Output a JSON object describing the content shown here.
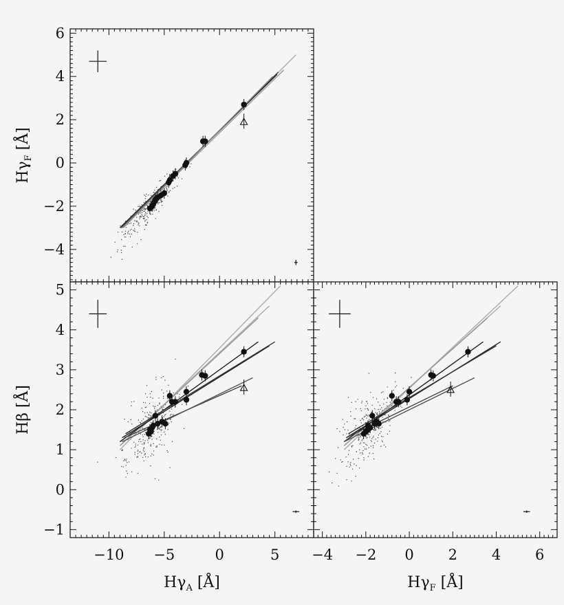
{
  "chart_data": [
    {
      "panel": "top-left",
      "type": "scatter",
      "xlabel": "",
      "ylabel": "Hγ_F [Å]",
      "ylabel_main": "Hγ",
      "ylabel_sub": "F",
      "ylabel_unit": " [Å]",
      "xlim": [
        -13.5,
        8.5
      ],
      "ylim": [
        -5.5,
        6.2
      ],
      "x_ticks": [],
      "y_ticks": [
        -4,
        -2,
        0,
        2,
        4,
        6
      ],
      "y_tick_labels": [
        "−4",
        "−2",
        "0",
        "2",
        "4",
        "6"
      ],
      "error_bar_large": {
        "x": -11.0,
        "y": 4.7,
        "dx": 0.8,
        "dy": 0.5
      },
      "error_bar_small": {
        "x": 6.9,
        "y": -4.6,
        "dx": 0.15,
        "dy": 0.12
      },
      "open_triangle": {
        "x": 2.2,
        "y": 1.9
      },
      "filled_points": [
        {
          "x": 2.2,
          "y": 2.7
        },
        {
          "x": -1.3,
          "y": 1.0
        },
        {
          "x": -1.5,
          "y": 1.0
        },
        {
          "x": -3.0,
          "y": 0.0
        },
        {
          "x": -3.1,
          "y": -0.1
        },
        {
          "x": -4.0,
          "y": -0.5
        },
        {
          "x": -4.2,
          "y": -0.6
        },
        {
          "x": -4.5,
          "y": -0.8
        },
        {
          "x": -4.6,
          "y": -0.9
        },
        {
          "x": -5.0,
          "y": -1.4
        },
        {
          "x": -5.3,
          "y": -1.5
        },
        {
          "x": -5.6,
          "y": -1.6
        },
        {
          "x": -5.8,
          "y": -1.7
        },
        {
          "x": -6.1,
          "y": -2.0
        },
        {
          "x": -6.3,
          "y": -2.1
        },
        {
          "x": -6.0,
          "y": -1.9
        },
        {
          "x": -5.9,
          "y": -1.8
        }
      ],
      "model_lines": [
        {
          "color": "#aaaaaa",
          "x": [
            -8.8,
            6.9
          ],
          "y": [
            -3.0,
            5.0
          ]
        },
        {
          "color": "#999999",
          "x": [
            -8.8,
            5.8
          ],
          "y": [
            -3.0,
            4.3
          ]
        },
        {
          "color": "#222222",
          "x": [
            -9.0,
            5.0
          ],
          "y": [
            -3.0,
            4.0
          ]
        },
        {
          "color": "#222222",
          "x": [
            -8.8,
            5.2
          ],
          "y": [
            -2.9,
            4.1
          ]
        },
        {
          "color": "#444444",
          "x": [
            -8.9,
            5.3
          ],
          "y": [
            -3.0,
            4.2
          ]
        },
        {
          "color": "#888888",
          "x": [
            -8.7,
            4.8
          ],
          "y": [
            -3.0,
            4.0
          ]
        }
      ]
    },
    {
      "panel": "bottom-left",
      "type": "scatter",
      "xlabel": "Hγ_A [Å]",
      "xlabel_main": "Hγ",
      "xlabel_sub": "A",
      "xlabel_unit": " [Å]",
      "ylabel": "Hβ [Å]",
      "ylabel_main": "Hβ",
      "ylabel_unit": " [Å]",
      "xlim": [
        -13.5,
        8.5
      ],
      "ylim": [
        -1.2,
        5.2
      ],
      "x_ticks": [
        -10,
        -5,
        0,
        5
      ],
      "x_tick_labels": [
        "−10",
        "−5",
        "0",
        "5"
      ],
      "y_ticks": [
        -1,
        0,
        1,
        2,
        3,
        4,
        5
      ],
      "y_tick_labels": [
        "−1",
        "0",
        "1",
        "2",
        "3",
        "4",
        "5"
      ],
      "error_bar_large": {
        "x": -11.0,
        "y": 4.4,
        "dx": 0.8,
        "dy": 0.35
      },
      "error_bar_small": {
        "x": 6.9,
        "y": -0.55,
        "dx": 0.3,
        "dy": 0.03
      },
      "open_triangle": {
        "x": 2.2,
        "y": 2.55
      },
      "filled_points": [
        {
          "x": 2.2,
          "y": 3.45
        },
        {
          "x": -1.3,
          "y": 2.85
        },
        {
          "x": -1.6,
          "y": 2.87
        },
        {
          "x": -3.0,
          "y": 2.45
        },
        {
          "x": -3.0,
          "y": 2.25
        },
        {
          "x": -4.5,
          "y": 2.35
        },
        {
          "x": -4.3,
          "y": 2.2
        },
        {
          "x": -4.0,
          "y": 2.2
        },
        {
          "x": -4.9,
          "y": 1.65
        },
        {
          "x": -5.2,
          "y": 1.7
        },
        {
          "x": -5.6,
          "y": 1.65
        },
        {
          "x": -5.8,
          "y": 1.85
        },
        {
          "x": -6.0,
          "y": 1.6
        },
        {
          "x": -6.2,
          "y": 1.45
        },
        {
          "x": -6.4,
          "y": 1.4
        },
        {
          "x": -6.1,
          "y": 1.55
        },
        {
          "x": -6.3,
          "y": 1.5
        }
      ],
      "model_lines": [
        {
          "color": "#aaaaaa",
          "x": [
            -9.0,
            5.5
          ],
          "y": [
            1.0,
            5.1
          ]
        },
        {
          "color": "#aaaaaa",
          "x": [
            -9.0,
            4.5
          ],
          "y": [
            1.1,
            4.6
          ]
        },
        {
          "color": "#999999",
          "x": [
            -9.0,
            3.5
          ],
          "y": [
            1.1,
            4.3
          ]
        },
        {
          "color": "#222222",
          "x": [
            -9.0,
            3.5
          ],
          "y": [
            1.2,
            3.7
          ]
        },
        {
          "color": "#222222",
          "x": [
            -8.8,
            4.5
          ],
          "y": [
            1.3,
            3.6
          ]
        },
        {
          "color": "#333333",
          "x": [
            -8.5,
            5.0
          ],
          "y": [
            1.4,
            3.7
          ]
        },
        {
          "color": "#444444",
          "x": [
            -8.6,
            2.0
          ],
          "y": [
            1.3,
            2.6
          ]
        },
        {
          "color": "#555555",
          "x": [
            -8.8,
            3.0
          ],
          "y": [
            1.2,
            2.8
          ]
        }
      ]
    },
    {
      "panel": "bottom-right",
      "type": "scatter",
      "xlabel": "Hγ_F [Å]",
      "xlabel_main": "Hγ",
      "xlabel_sub": "F",
      "xlabel_unit": " [Å]",
      "ylabel": "",
      "xlim": [
        -4.4,
        6.8
      ],
      "ylim": [
        -1.2,
        5.2
      ],
      "x_ticks": [
        -4,
        -2,
        0,
        2,
        4,
        6
      ],
      "x_tick_labels": [
        "−4",
        "−2",
        "0",
        "2",
        "4",
        "6"
      ],
      "y_ticks": [
        -1,
        0,
        1,
        2,
        3,
        4,
        5
      ],
      "error_bar_large": {
        "x": -3.2,
        "y": 4.4,
        "dx": 0.5,
        "dy": 0.35
      },
      "error_bar_small": {
        "x": 5.4,
        "y": -0.55,
        "dx": 0.15,
        "dy": 0.03
      },
      "open_triangle": {
        "x": 1.9,
        "y": 2.5
      },
      "filled_points": [
        {
          "x": 2.7,
          "y": 3.45
        },
        {
          "x": 1.0,
          "y": 2.87
        },
        {
          "x": 1.1,
          "y": 2.85
        },
        {
          "x": 0.0,
          "y": 2.45
        },
        {
          "x": -0.1,
          "y": 2.25
        },
        {
          "x": -0.8,
          "y": 2.35
        },
        {
          "x": -0.6,
          "y": 2.2
        },
        {
          "x": -0.5,
          "y": 2.2
        },
        {
          "x": -1.4,
          "y": 1.65
        },
        {
          "x": -1.5,
          "y": 1.7
        },
        {
          "x": -1.6,
          "y": 1.65
        },
        {
          "x": -1.7,
          "y": 1.85
        },
        {
          "x": -1.9,
          "y": 1.6
        },
        {
          "x": -2.0,
          "y": 1.45
        },
        {
          "x": -2.1,
          "y": 1.4
        },
        {
          "x": -1.8,
          "y": 1.55
        },
        {
          "x": -1.9,
          "y": 1.5
        }
      ],
      "model_lines": [
        {
          "color": "#aaaaaa",
          "x": [
            -3.0,
            5.0
          ],
          "y": [
            1.0,
            5.1
          ]
        },
        {
          "color": "#aaaaaa",
          "x": [
            -3.0,
            4.2
          ],
          "y": [
            1.1,
            4.6
          ]
        },
        {
          "color": "#999999",
          "x": [
            -3.0,
            3.6
          ],
          "y": [
            1.1,
            4.3
          ]
        },
        {
          "color": "#222222",
          "x": [
            -3.0,
            3.4
          ],
          "y": [
            1.2,
            3.7
          ]
        },
        {
          "color": "#222222",
          "x": [
            -2.9,
            4.2
          ],
          "y": [
            1.3,
            3.7
          ]
        },
        {
          "color": "#333333",
          "x": [
            -2.8,
            4.0
          ],
          "y": [
            1.4,
            3.6
          ]
        },
        {
          "color": "#444444",
          "x": [
            -2.9,
            2.0
          ],
          "y": [
            1.3,
            2.6
          ]
        },
        {
          "color": "#555555",
          "x": [
            -3.0,
            3.0
          ],
          "y": [
            1.2,
            2.8
          ]
        }
      ]
    }
  ]
}
